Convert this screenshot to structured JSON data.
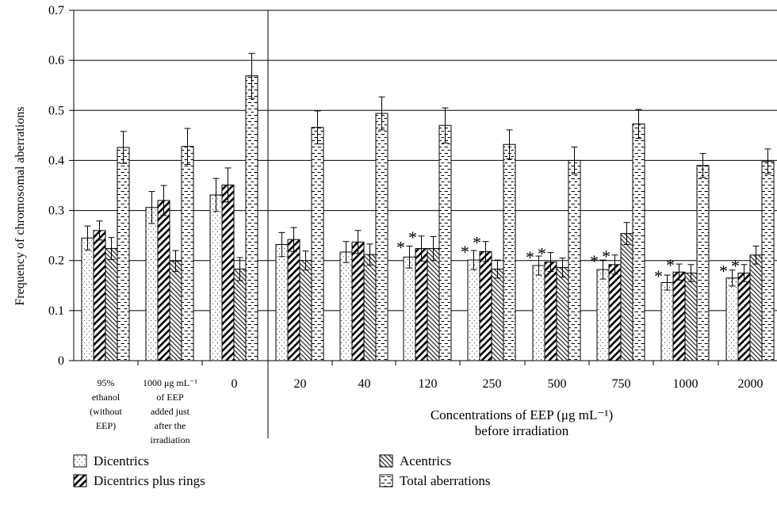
{
  "chart_data": {
    "type": "bar",
    "ylabel": "Frequency of chromosomal aberrations",
    "xlabel_lines": [
      "Concentrations of EEP (μg mL⁻¹)",
      "before irradiation"
    ],
    "ylim": [
      0,
      0.7
    ],
    "yticks": [
      "0",
      "0.1",
      "0.2",
      "0.3",
      "0.4",
      "0.5",
      "0.6",
      "0.7"
    ],
    "grid": true,
    "legend_position": "bottom",
    "categories": [
      {
        "lines": [
          "95%",
          "ethanol",
          "(without",
          "EEP)"
        ],
        "small": true
      },
      {
        "lines": [
          "1000 μg mL⁻¹",
          "of EEP",
          "added just",
          "after the",
          "irradiation"
        ],
        "small": true
      },
      {
        "lines": [
          "0"
        ],
        "small": false
      },
      {
        "lines": [
          "20"
        ],
        "small": false
      },
      {
        "lines": [
          "40"
        ],
        "small": false
      },
      {
        "lines": [
          "120"
        ],
        "small": false
      },
      {
        "lines": [
          "250"
        ],
        "small": false
      },
      {
        "lines": [
          "500"
        ],
        "small": false
      },
      {
        "lines": [
          "750"
        ],
        "small": false
      },
      {
        "lines": [
          "1000"
        ],
        "small": false
      },
      {
        "lines": [
          "2000"
        ],
        "small": false
      }
    ],
    "series": [
      {
        "name": "Dicentrics",
        "pattern": "dots",
        "values": [
          0.245,
          0.306,
          0.331,
          0.232,
          0.217,
          0.207,
          0.201,
          0.19,
          0.182,
          0.156,
          0.165
        ],
        "errors": [
          0.024,
          0.032,
          0.033,
          0.024,
          0.021,
          0.022,
          0.019,
          0.019,
          0.019,
          0.015,
          0.016
        ]
      },
      {
        "name": "Dicentrics plus rings",
        "pattern": "hatch",
        "values": [
          0.26,
          0.32,
          0.351,
          0.242,
          0.237,
          0.224,
          0.218,
          0.197,
          0.192,
          0.177,
          0.175
        ],
        "errors": [
          0.019,
          0.03,
          0.034,
          0.024,
          0.023,
          0.025,
          0.02,
          0.019,
          0.019,
          0.016,
          0.017
        ]
      },
      {
        "name": "Acentrics",
        "pattern": "light-hatch",
        "values": [
          0.224,
          0.199,
          0.183,
          0.2,
          0.212,
          0.224,
          0.183,
          0.186,
          0.254,
          0.175,
          0.211
        ],
        "errors": [
          0.022,
          0.021,
          0.023,
          0.019,
          0.021,
          0.024,
          0.018,
          0.019,
          0.022,
          0.017,
          0.018
        ]
      },
      {
        "name": "Total aberrations",
        "pattern": "dashes",
        "values": [
          0.426,
          0.428,
          0.569,
          0.466,
          0.494,
          0.47,
          0.432,
          0.4,
          0.473,
          0.39,
          0.398
        ],
        "errors": [
          0.032,
          0.036,
          0.045,
          0.033,
          0.033,
          0.035,
          0.029,
          0.027,
          0.029,
          0.024,
          0.025
        ]
      }
    ],
    "annotations": {
      "marker": "*",
      "significant": [
        {
          "category_index": 5,
          "series_index": 0
        },
        {
          "category_index": 5,
          "series_index": 1
        },
        {
          "category_index": 6,
          "series_index": 0
        },
        {
          "category_index": 6,
          "series_index": 1
        },
        {
          "category_index": 7,
          "series_index": 0
        },
        {
          "category_index": 7,
          "series_index": 1
        },
        {
          "category_index": 8,
          "series_index": 0
        },
        {
          "category_index": 8,
          "series_index": 1
        },
        {
          "category_index": 9,
          "series_index": 0
        },
        {
          "category_index": 9,
          "series_index": 1
        },
        {
          "category_index": 10,
          "series_index": 0
        },
        {
          "category_index": 10,
          "series_index": 1
        }
      ]
    },
    "colors": {
      "ink": "#000000",
      "background": "#ffffff"
    }
  }
}
